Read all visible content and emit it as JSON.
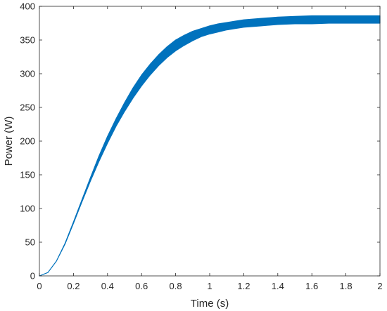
{
  "chart_data": {
    "type": "line",
    "title": "",
    "xlabel": "Time (s)",
    "ylabel": "Power (W)",
    "xlim": [
      0,
      2
    ],
    "ylim": [
      0,
      400
    ],
    "xticks": [
      0,
      0.2,
      0.4,
      0.6,
      0.8,
      1,
      1.2,
      1.4,
      1.6,
      1.8,
      2
    ],
    "yticks": [
      0,
      50,
      100,
      150,
      200,
      250,
      300,
      350,
      400
    ],
    "xtick_labels": [
      "0",
      "0.2",
      "0.4",
      "0.6",
      "0.8",
      "1",
      "1.2",
      "1.4",
      "1.6",
      "1.8",
      "2"
    ],
    "ytick_labels": [
      "0",
      "50",
      "100",
      "150",
      "200",
      "250",
      "300",
      "350",
      "400"
    ],
    "grid": false,
    "legend": "none",
    "series": [
      {
        "color": "#0072BD",
        "style": "oscillating band (upper and lower envelope)",
        "x": [
          0,
          0.05,
          0.1,
          0.15,
          0.2,
          0.25,
          0.3,
          0.35,
          0.4,
          0.45,
          0.5,
          0.55,
          0.6,
          0.65,
          0.7,
          0.75,
          0.8,
          0.85,
          0.9,
          0.95,
          1.0,
          1.05,
          1.1,
          1.15,
          1.2,
          1.3,
          1.4,
          1.5,
          1.6,
          1.7,
          1.8,
          1.9,
          2.0
        ],
        "y_upper": [
          0,
          5,
          22,
          48,
          80,
          113,
          146,
          178,
          207,
          233,
          257,
          279,
          298,
          314,
          328,
          340,
          350,
          357,
          363,
          367,
          371,
          374,
          376,
          378,
          380,
          382,
          384,
          385,
          386,
          386,
          386,
          386,
          386
        ],
        "y_lower": [
          0,
          5,
          22,
          47,
          78,
          110,
          141,
          170,
          197,
          222,
          244,
          264,
          282,
          298,
          312,
          324,
          334,
          342,
          349,
          355,
          359,
          362,
          365,
          367,
          369,
          371,
          373,
          374,
          374,
          375,
          375,
          375,
          375
        ]
      }
    ]
  }
}
